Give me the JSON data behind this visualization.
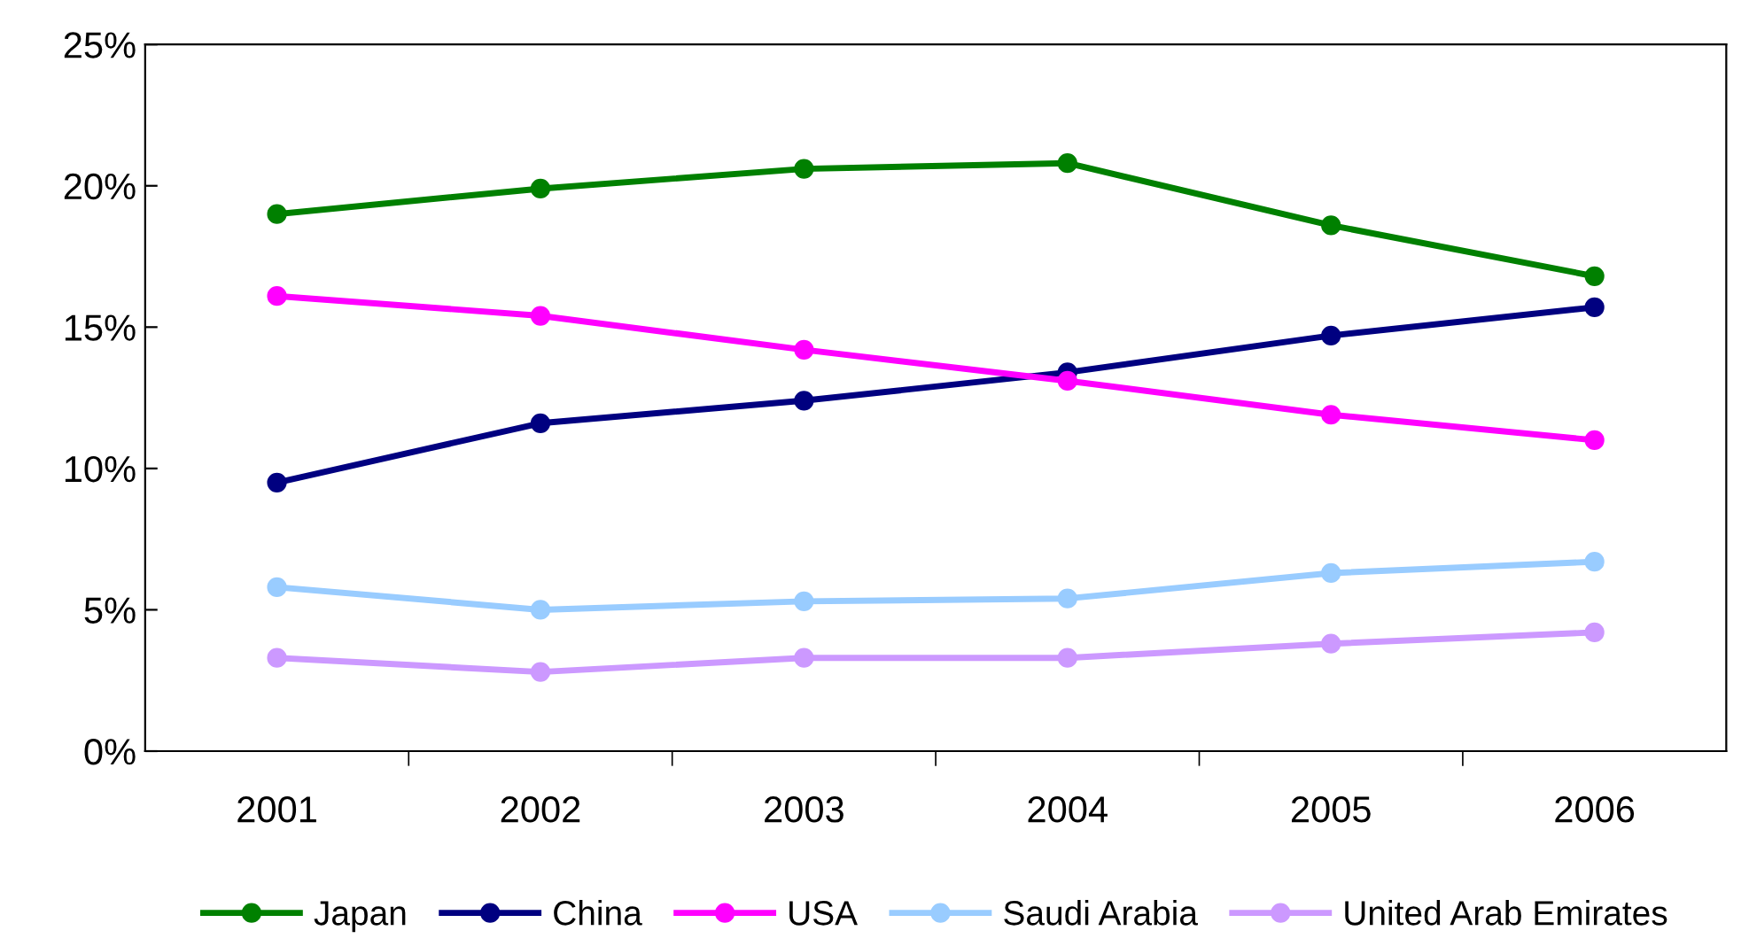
{
  "chart_data": {
    "type": "line",
    "categories": [
      "2001",
      "2002",
      "2003",
      "2004",
      "2005",
      "2006"
    ],
    "series": [
      {
        "name": "Japan",
        "color": "#008000",
        "values": [
          19.0,
          19.9,
          20.6,
          20.8,
          18.6,
          16.8
        ]
      },
      {
        "name": "China",
        "color": "#000080",
        "values": [
          9.5,
          11.6,
          12.4,
          13.4,
          14.7,
          15.7
        ]
      },
      {
        "name": "USA",
        "color": "#ff00ff",
        "values": [
          16.1,
          15.4,
          14.2,
          13.1,
          11.9,
          11.0
        ]
      },
      {
        "name": "Saudi Arabia",
        "color": "#99ccff",
        "values": [
          5.8,
          5.0,
          5.3,
          5.4,
          6.3,
          6.7
        ]
      },
      {
        "name": "United Arab Emirates",
        "color": "#cc99ff",
        "values": [
          3.3,
          2.8,
          3.3,
          3.3,
          3.8,
          4.2
        ]
      }
    ],
    "ylim": [
      0,
      25
    ],
    "yticks": [
      {
        "value": 0,
        "label": "0%"
      },
      {
        "value": 5,
        "label": "5%"
      },
      {
        "value": 10,
        "label": "10%"
      },
      {
        "value": 15,
        "label": "15%"
      },
      {
        "value": 20,
        "label": "20%"
      },
      {
        "value": 25,
        "label": "25%"
      }
    ],
    "marker": "circle",
    "line_style": "solid",
    "grid": false,
    "legend": "bottom"
  }
}
